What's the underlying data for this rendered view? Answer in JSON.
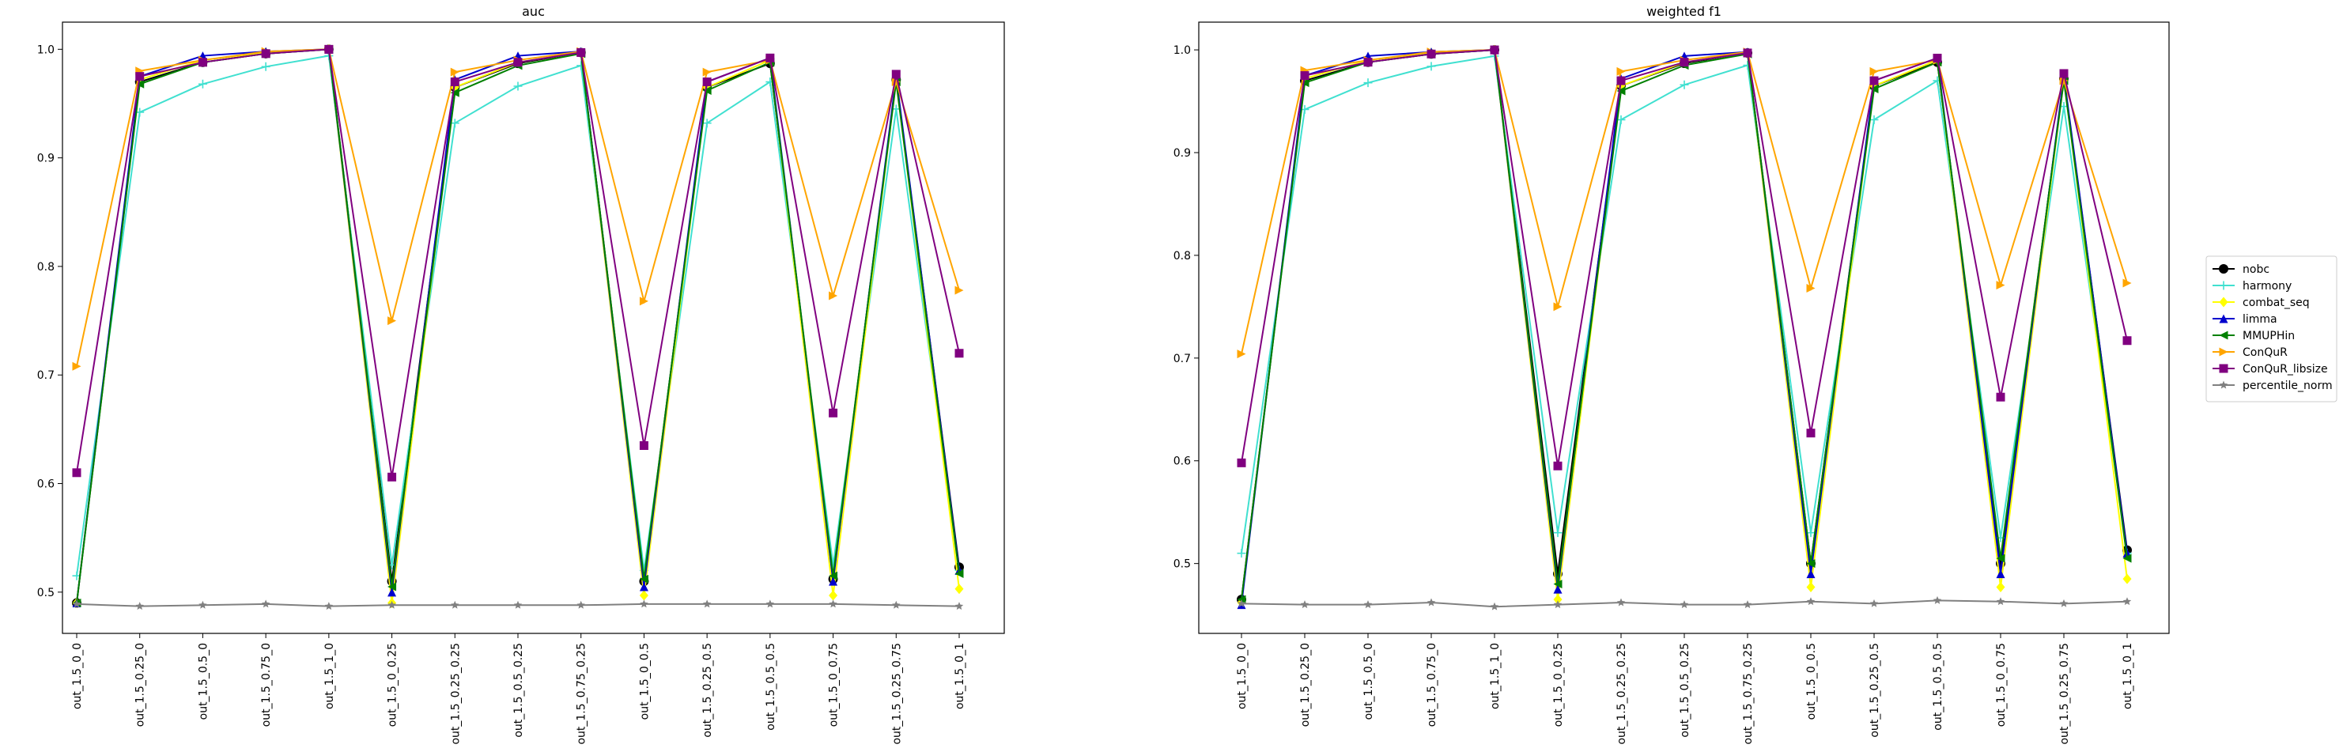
{
  "chart_data": [
    {
      "type": "line",
      "title": "auc",
      "xlabel": "",
      "ylabel": "",
      "ylim": [
        0.462,
        1.025
      ],
      "yticks": [
        0.5,
        0.6,
        0.7,
        0.8,
        0.9,
        1.0
      ],
      "ytick_labels": [
        "0.5",
        "0.6",
        "0.7",
        "0.8",
        "0.9",
        "1.0"
      ],
      "grid": false,
      "categories": [
        "out_1.5_0_0",
        "out_1.5_0.25_0",
        "out_1.5_0.5_0",
        "out_1.5_0.75_0",
        "out_1.5_1_0",
        "out_1.5_0_0.25",
        "out_1.5_0.25_0.25",
        "out_1.5_0.5_0.25",
        "out_1.5_0.75_0.25",
        "out_1.5_0_0.5",
        "out_1.5_0.25_0.5",
        "out_1.5_0.5_0.5",
        "out_1.5_0_0.75",
        "out_1.5_0.25_0.75",
        "out_1.5_0_1"
      ],
      "series": [
        {
          "name": "nobc",
          "color": "#000000",
          "marker": "circle",
          "values": [
            0.49,
            0.97,
            0.988,
            0.996,
            1.0,
            0.51,
            0.965,
            0.987,
            0.997,
            0.51,
            0.965,
            0.987,
            0.512,
            0.972,
            0.523
          ]
        },
        {
          "name": "harmony",
          "color": "#40e0d0",
          "marker": "plus",
          "values": [
            0.515,
            0.942,
            0.968,
            0.984,
            0.994,
            0.525,
            0.932,
            0.966,
            0.985,
            0.52,
            0.932,
            0.97,
            0.525,
            0.945,
            0.52
          ]
        },
        {
          "name": "combat_seq",
          "color": "#ffff00",
          "marker": "diamond",
          "values": [
            0.49,
            0.972,
            0.99,
            0.997,
            1.0,
            0.49,
            0.965,
            0.988,
            0.997,
            0.497,
            0.965,
            0.99,
            0.497,
            0.972,
            0.503
          ]
        },
        {
          "name": "limma",
          "color": "#0000cd",
          "marker": "triangle-up",
          "values": [
            0.49,
            0.975,
            0.994,
            0.998,
            1.0,
            0.5,
            0.972,
            0.994,
            0.998,
            0.505,
            0.97,
            0.992,
            0.51,
            0.975,
            0.52
          ]
        },
        {
          "name": "MMUPHin",
          "color": "#008000",
          "marker": "triangle-left",
          "values": [
            0.49,
            0.968,
            0.988,
            0.996,
            1.0,
            0.505,
            0.96,
            0.985,
            0.996,
            0.512,
            0.962,
            0.988,
            0.515,
            0.97,
            0.517
          ]
        },
        {
          "name": "ConQuR",
          "color": "#ffa500",
          "marker": "triangle-right",
          "values": [
            0.708,
            0.98,
            0.99,
            0.998,
            1.0,
            0.75,
            0.979,
            0.99,
            0.998,
            0.768,
            0.979,
            0.99,
            0.773,
            0.97,
            0.778
          ]
        },
        {
          "name": "ConQuR_libsize",
          "color": "#800080",
          "marker": "square",
          "values": [
            0.61,
            0.975,
            0.988,
            0.996,
            1.0,
            0.606,
            0.97,
            0.988,
            0.997,
            0.635,
            0.97,
            0.992,
            0.665,
            0.977,
            0.72
          ]
        },
        {
          "name": "percentile_norm",
          "color": "#808080",
          "marker": "star",
          "values": [
            0.489,
            0.487,
            0.488,
            0.489,
            0.487,
            0.488,
            0.488,
            0.488,
            0.488,
            0.489,
            0.489,
            0.489,
            0.489,
            0.488,
            0.487
          ]
        }
      ]
    },
    {
      "type": "line",
      "title": "weighted f1",
      "xlabel": "",
      "ylabel": "",
      "ylim": [
        0.432,
        1.027
      ],
      "yticks": [
        0.5,
        0.6,
        0.7,
        0.8,
        0.9,
        1.0
      ],
      "ytick_labels": [
        "0.5",
        "0.6",
        "0.7",
        "0.8",
        "0.9",
        "1.0"
      ],
      "grid": false,
      "categories": [
        "out_1.5_0_0",
        "out_1.5_0.25_0",
        "out_1.5_0.5_0",
        "out_1.5_0.75_0",
        "out_1.5_1_0",
        "out_1.5_0_0.25",
        "out_1.5_0.25_0.25",
        "out_1.5_0.5_0.25",
        "out_1.5_0.75_0.25",
        "out_1.5_0_0.5",
        "out_1.5_0.25_0.5",
        "out_1.5_0.5_0.5",
        "out_1.5_0_0.75",
        "out_1.5_0.25_0.75",
        "out_1.5_0_1"
      ],
      "series": [
        {
          "name": "nobc",
          "color": "#000000",
          "marker": "circle",
          "values": [
            0.465,
            0.97,
            0.988,
            0.996,
            1.0,
            0.49,
            0.965,
            0.987,
            0.997,
            0.5,
            0.965,
            0.988,
            0.5,
            0.972,
            0.513
          ]
        },
        {
          "name": "harmony",
          "color": "#40e0d0",
          "marker": "plus",
          "values": [
            0.51,
            0.942,
            0.968,
            0.984,
            0.994,
            0.53,
            0.932,
            0.966,
            0.985,
            0.53,
            0.932,
            0.97,
            0.525,
            0.945,
            0.51
          ]
        },
        {
          "name": "combat_seq",
          "color": "#ffff00",
          "marker": "diamond",
          "values": [
            0.462,
            0.972,
            0.99,
            0.997,
            1.0,
            0.465,
            0.965,
            0.988,
            0.997,
            0.477,
            0.965,
            0.99,
            0.477,
            0.972,
            0.485
          ]
        },
        {
          "name": "limma",
          "color": "#0000cd",
          "marker": "triangle-up",
          "values": [
            0.46,
            0.975,
            0.994,
            0.998,
            1.0,
            0.475,
            0.972,
            0.994,
            0.998,
            0.49,
            0.97,
            0.992,
            0.49,
            0.975,
            0.51
          ]
        },
        {
          "name": "MMUPHin",
          "color": "#008000",
          "marker": "triangle-left",
          "values": [
            0.465,
            0.968,
            0.988,
            0.996,
            1.0,
            0.48,
            0.96,
            0.985,
            0.996,
            0.5,
            0.962,
            0.988,
            0.505,
            0.97,
            0.505
          ]
        },
        {
          "name": "ConQuR",
          "color": "#ffa500",
          "marker": "triangle-right",
          "values": [
            0.704,
            0.98,
            0.99,
            0.998,
            1.0,
            0.75,
            0.979,
            0.99,
            0.998,
            0.768,
            0.979,
            0.99,
            0.771,
            0.97,
            0.773
          ]
        },
        {
          "name": "ConQuR_libsize",
          "color": "#800080",
          "marker": "square",
          "values": [
            0.598,
            0.975,
            0.988,
            0.996,
            1.0,
            0.595,
            0.97,
            0.988,
            0.997,
            0.627,
            0.97,
            0.992,
            0.662,
            0.977,
            0.717
          ]
        },
        {
          "name": "percentile_norm",
          "color": "#808080",
          "marker": "star",
          "values": [
            0.461,
            0.46,
            0.46,
            0.462,
            0.458,
            0.46,
            0.462,
            0.46,
            0.46,
            0.463,
            0.461,
            0.464,
            0.463,
            0.461,
            0.463
          ]
        }
      ]
    }
  ],
  "legend": {
    "placement": "right-center",
    "entries": [
      "nobc",
      "harmony",
      "combat_seq",
      "limma",
      "MMUPHin",
      "ConQuR",
      "ConQuR_libsize",
      "percentile_norm"
    ]
  }
}
